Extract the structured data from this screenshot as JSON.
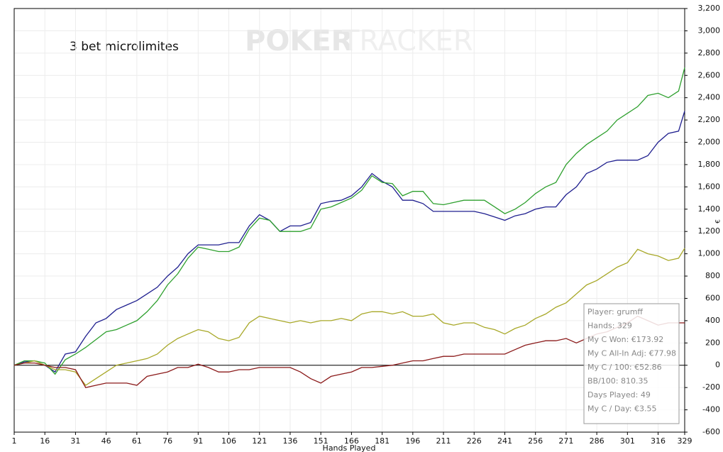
{
  "chart_data": {
    "type": "line",
    "title": "3 bet microlimites",
    "watermark": [
      "POKER",
      "TRACKER"
    ],
    "x_label": "Hands Played",
    "y_label": "€",
    "x": [
      1,
      6,
      11,
      16,
      21,
      26,
      31,
      36,
      41,
      46,
      51,
      56,
      61,
      66,
      71,
      76,
      81,
      86,
      91,
      96,
      101,
      106,
      111,
      116,
      121,
      126,
      131,
      136,
      141,
      146,
      151,
      156,
      161,
      166,
      171,
      176,
      181,
      186,
      191,
      196,
      201,
      206,
      211,
      216,
      221,
      226,
      231,
      236,
      241,
      246,
      251,
      256,
      261,
      266,
      271,
      276,
      281,
      286,
      291,
      296,
      301,
      306,
      311,
      316,
      321,
      326,
      329
    ],
    "series": [
      {
        "color": "#1f1f8f",
        "values": [
          0,
          30,
          40,
          0,
          -60,
          100,
          120,
          260,
          380,
          420,
          500,
          540,
          580,
          640,
          700,
          800,
          880,
          1000,
          1080,
          1080,
          1080,
          1100,
          1100,
          1250,
          1350,
          1300,
          1200,
          1250,
          1250,
          1280,
          1450,
          1470,
          1480,
          1520,
          1600,
          1720,
          1650,
          1600,
          1480,
          1480,
          1450,
          1380,
          1380,
          1380,
          1380,
          1380,
          1360,
          1330,
          1300,
          1340,
          1360,
          1400,
          1420,
          1420,
          1530,
          1600,
          1720,
          1760,
          1820,
          1840,
          1840,
          1840,
          1880,
          2000,
          2080,
          2100,
          2280
        ]
      },
      {
        "color": "#2ea02e",
        "values": [
          0,
          40,
          40,
          20,
          -80,
          50,
          100,
          160,
          230,
          300,
          320,
          360,
          400,
          480,
          580,
          720,
          820,
          960,
          1060,
          1040,
          1020,
          1020,
          1060,
          1220,
          1320,
          1300,
          1200,
          1200,
          1200,
          1230,
          1400,
          1420,
          1460,
          1500,
          1570,
          1700,
          1640,
          1630,
          1520,
          1560,
          1560,
          1450,
          1440,
          1460,
          1480,
          1480,
          1480,
          1420,
          1360,
          1400,
          1460,
          1540,
          1600,
          1640,
          1800,
          1900,
          1980,
          2040,
          2100,
          2200,
          2260,
          2320,
          2420,
          2440,
          2400,
          2460,
          2670
        ]
      },
      {
        "color": "#a8a828",
        "values": [
          0,
          20,
          40,
          0,
          -40,
          -40,
          -60,
          -180,
          -120,
          -60,
          0,
          20,
          40,
          60,
          100,
          180,
          240,
          280,
          320,
          300,
          240,
          220,
          250,
          380,
          440,
          420,
          400,
          380,
          400,
          380,
          400,
          400,
          420,
          400,
          460,
          480,
          480,
          460,
          480,
          440,
          440,
          460,
          380,
          360,
          380,
          380,
          340,
          320,
          280,
          330,
          360,
          420,
          460,
          520,
          560,
          640,
          720,
          760,
          820,
          880,
          920,
          1040,
          1000,
          980,
          940,
          960,
          1050
        ]
      },
      {
        "color": "#8b1a1a",
        "values": [
          0,
          20,
          20,
          0,
          -20,
          -20,
          -40,
          -200,
          -180,
          -160,
          -160,
          -160,
          -180,
          -100,
          -80,
          -60,
          -20,
          -20,
          10,
          -20,
          -60,
          -60,
          -40,
          -40,
          -20,
          -20,
          -20,
          -20,
          -60,
          -120,
          -160,
          -100,
          -80,
          -60,
          -20,
          -20,
          -10,
          0,
          20,
          40,
          40,
          60,
          80,
          80,
          100,
          100,
          100,
          100,
          100,
          140,
          180,
          200,
          220,
          220,
          240,
          200,
          240,
          280,
          300,
          340,
          380,
          440,
          400,
          360,
          380,
          380,
          380
        ]
      }
    ],
    "xlim": [
      1,
      329
    ],
    "xticks": [
      1,
      16,
      31,
      46,
      61,
      76,
      91,
      106,
      121,
      136,
      151,
      166,
      181,
      196,
      211,
      226,
      241,
      256,
      271,
      286,
      301,
      316,
      329
    ],
    "ylim": [
      -600,
      3200
    ],
    "yticks": [
      -600,
      -400,
      -200,
      0,
      200,
      400,
      600,
      800,
      {
        "value": 1000,
        "label": "1,000"
      },
      {
        "value": 1200,
        "label": "1,200"
      },
      {
        "value": 1400,
        "label": "1,400"
      },
      {
        "value": 1600,
        "label": "1,600"
      },
      {
        "value": 1800,
        "label": "1,800"
      },
      {
        "value": 2000,
        "label": "2,000"
      },
      {
        "value": 2200,
        "label": "2,200"
      },
      {
        "value": 2400,
        "label": "2,400"
      },
      {
        "value": 2600,
        "label": "2,600"
      },
      {
        "value": 2800,
        "label": "2,800"
      },
      {
        "value": 3000,
        "label": "3,000"
      },
      {
        "value": 3200,
        "label": "3,200"
      }
    ],
    "grid": true,
    "tooltip": [
      "Player: grumff",
      "Hands: 329",
      "My C Won: €173.92",
      "My C All-In Adj: €77.98",
      "My C / 100: €52.86",
      "BB/100: 810.35",
      "Days Played: 49",
      "My C / Day: €3.55"
    ]
  }
}
